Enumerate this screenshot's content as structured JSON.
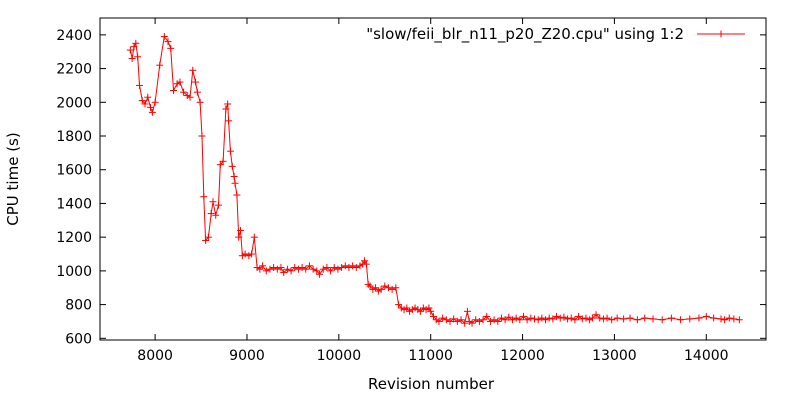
{
  "chart_data": {
    "type": "line",
    "xlabel": "Revision number",
    "ylabel": "CPU time (s)",
    "xlim": [
      7400,
      14650
    ],
    "ylim": [
      590,
      2500
    ],
    "xticks": [
      8000,
      9000,
      10000,
      11000,
      12000,
      13000,
      14000
    ],
    "yticks": [
      600,
      800,
      1000,
      1200,
      1400,
      1600,
      1800,
      2000,
      2200,
      2400
    ],
    "grid": false,
    "legend_position": "top-right",
    "series": [
      {
        "name": "\"slow/feii_blr_n11_p20_Z20.cpu\" using 1:2",
        "color": "#ff0000",
        "marker": "plus",
        "points": [
          [
            7730,
            2310
          ],
          [
            7750,
            2260
          ],
          [
            7770,
            2330
          ],
          [
            7790,
            2350
          ],
          [
            7810,
            2270
          ],
          [
            7830,
            2100
          ],
          [
            7860,
            2010
          ],
          [
            7890,
            1990
          ],
          [
            7920,
            2030
          ],
          [
            7950,
            1970
          ],
          [
            7970,
            1940
          ],
          [
            8000,
            2000
          ],
          [
            8050,
            2220
          ],
          [
            8100,
            2390
          ],
          [
            8140,
            2360
          ],
          [
            8170,
            2320
          ],
          [
            8200,
            2070
          ],
          [
            8240,
            2110
          ],
          [
            8270,
            2120
          ],
          [
            8310,
            2060
          ],
          [
            8350,
            2040
          ],
          [
            8380,
            2030
          ],
          [
            8410,
            2190
          ],
          [
            8440,
            2120
          ],
          [
            8460,
            2060
          ],
          [
            8490,
            2000
          ],
          [
            8510,
            1800
          ],
          [
            8530,
            1440
          ],
          [
            8550,
            1180
          ],
          [
            8580,
            1200
          ],
          [
            8610,
            1340
          ],
          [
            8630,
            1410
          ],
          [
            8660,
            1330
          ],
          [
            8690,
            1390
          ],
          [
            8710,
            1630
          ],
          [
            8740,
            1650
          ],
          [
            8770,
            1960
          ],
          [
            8790,
            1990
          ],
          [
            8800,
            1890
          ],
          [
            8820,
            1710
          ],
          [
            8840,
            1620
          ],
          [
            8860,
            1560
          ],
          [
            8870,
            1520
          ],
          [
            8890,
            1450
          ],
          [
            8910,
            1200
          ],
          [
            8930,
            1240
          ],
          [
            8950,
            1090
          ],
          [
            8980,
            1100
          ],
          [
            9020,
            1090
          ],
          [
            9050,
            1100
          ],
          [
            9080,
            1200
          ],
          [
            9110,
            1020
          ],
          [
            9140,
            1010
          ],
          [
            9170,
            1030
          ],
          [
            9210,
            1000
          ],
          [
            9250,
            1010
          ],
          [
            9290,
            1020
          ],
          [
            9330,
            1010
          ],
          [
            9370,
            1020
          ],
          [
            9400,
            990
          ],
          [
            9440,
            1010
          ],
          [
            9480,
            1000
          ],
          [
            9520,
            1020
          ],
          [
            9560,
            1010
          ],
          [
            9600,
            1020
          ],
          [
            9640,
            1010
          ],
          [
            9680,
            1030
          ],
          [
            9720,
            1010
          ],
          [
            9760,
            1000
          ],
          [
            9790,
            980
          ],
          [
            9830,
            1010
          ],
          [
            9870,
            1020
          ],
          [
            9910,
            1000
          ],
          [
            9950,
            1020
          ],
          [
            9990,
            1010
          ],
          [
            10030,
            1020
          ],
          [
            10070,
            1030
          ],
          [
            10110,
            1020
          ],
          [
            10150,
            1030
          ],
          [
            10190,
            1020
          ],
          [
            10230,
            1030
          ],
          [
            10260,
            1040
          ],
          [
            10280,
            1060
          ],
          [
            10300,
            1040
          ],
          [
            10320,
            920
          ],
          [
            10340,
            910
          ],
          [
            10370,
            890
          ],
          [
            10400,
            900
          ],
          [
            10430,
            880
          ],
          [
            10460,
            890
          ],
          [
            10500,
            910
          ],
          [
            10540,
            900
          ],
          [
            10580,
            890
          ],
          [
            10620,
            900
          ],
          [
            10650,
            800
          ],
          [
            10680,
            780
          ],
          [
            10710,
            770
          ],
          [
            10740,
            780
          ],
          [
            10770,
            760
          ],
          [
            10800,
            770
          ],
          [
            10830,
            780
          ],
          [
            10860,
            770
          ],
          [
            10890,
            760
          ],
          [
            10920,
            780
          ],
          [
            10950,
            770
          ],
          [
            10980,
            780
          ],
          [
            11000,
            760
          ],
          [
            11030,
            730
          ],
          [
            11060,
            710
          ],
          [
            11090,
            700
          ],
          [
            11130,
            720
          ],
          [
            11170,
            710
          ],
          [
            11210,
            700
          ],
          [
            11250,
            715
          ],
          [
            11290,
            700
          ],
          [
            11330,
            710
          ],
          [
            11370,
            690
          ],
          [
            11400,
            760
          ],
          [
            11420,
            700
          ],
          [
            11450,
            690
          ],
          [
            11490,
            710
          ],
          [
            11530,
            700
          ],
          [
            11570,
            710
          ],
          [
            11610,
            730
          ],
          [
            11650,
            700
          ],
          [
            11690,
            710
          ],
          [
            11730,
            700
          ],
          [
            11770,
            720
          ],
          [
            11810,
            710
          ],
          [
            11850,
            725
          ],
          [
            11890,
            710
          ],
          [
            11930,
            720
          ],
          [
            11970,
            710
          ],
          [
            12010,
            730
          ],
          [
            12050,
            710
          ],
          [
            12090,
            720
          ],
          [
            12130,
            715
          ],
          [
            12170,
            710
          ],
          [
            12210,
            720
          ],
          [
            12250,
            710
          ],
          [
            12290,
            720
          ],
          [
            12330,
            715
          ],
          [
            12370,
            730
          ],
          [
            12410,
            720
          ],
          [
            12450,
            725
          ],
          [
            12490,
            715
          ],
          [
            12530,
            720
          ],
          [
            12570,
            710
          ],
          [
            12610,
            730
          ],
          [
            12650,
            715
          ],
          [
            12690,
            720
          ],
          [
            12730,
            710
          ],
          [
            12760,
            720
          ],
          [
            12800,
            740
          ],
          [
            12840,
            720
          ],
          [
            12880,
            715
          ],
          [
            12920,
            720
          ],
          [
            12970,
            710
          ],
          [
            13030,
            720
          ],
          [
            13100,
            715
          ],
          [
            13170,
            720
          ],
          [
            13250,
            710
          ],
          [
            13330,
            720
          ],
          [
            13420,
            715
          ],
          [
            13520,
            710
          ],
          [
            13620,
            720
          ],
          [
            13720,
            710
          ],
          [
            13820,
            715
          ],
          [
            13920,
            720
          ],
          [
            14000,
            730
          ],
          [
            14080,
            720
          ],
          [
            14160,
            715
          ],
          [
            14200,
            710
          ],
          [
            14250,
            720
          ],
          [
            14300,
            715
          ],
          [
            14360,
            710
          ]
        ]
      }
    ]
  }
}
